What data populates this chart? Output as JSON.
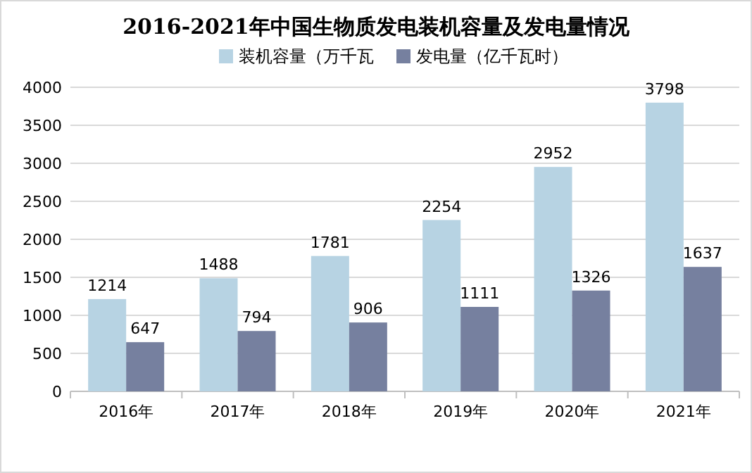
{
  "chart_data": {
    "type": "bar",
    "title": "2016-2021年中国生物质发电装机容量及发电量情况",
    "categories": [
      "2016年",
      "2017年",
      "2018年",
      "2019年",
      "2020年",
      "2021年"
    ],
    "series": [
      {
        "name": "装机容量（万千瓦",
        "color": "#b7d3e3",
        "values": [
          1214,
          1488,
          1781,
          2254,
          2952,
          3798
        ]
      },
      {
        "name": "发电量（亿千瓦时）",
        "color": "#76809f",
        "values": [
          647,
          794,
          906,
          1111,
          1326,
          1637
        ]
      }
    ],
    "ylim": [
      0,
      4000
    ],
    "yticks": [
      0,
      500,
      1000,
      1500,
      2000,
      2500,
      3000,
      3500,
      4000
    ],
    "grid": "y",
    "legend": "top",
    "data_labels": true
  }
}
